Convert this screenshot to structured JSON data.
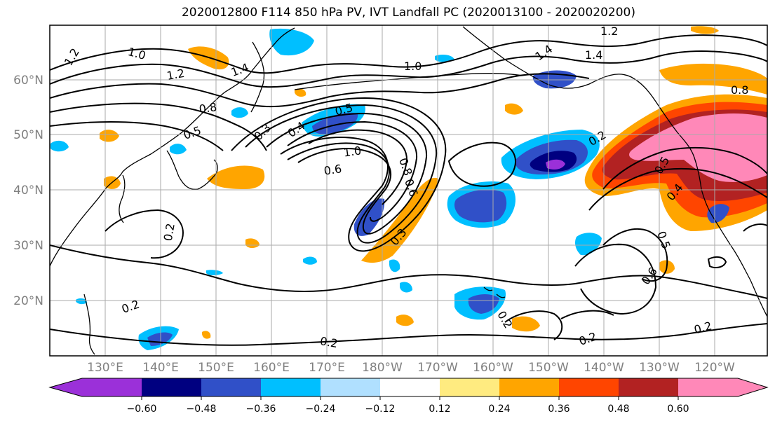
{
  "title": "2020012800 F114 850 hPa PV, IVT Landfall PC (2020013100 - 2020020200)",
  "map": {
    "lat_labels": [
      "60°N",
      "50°N",
      "40°N",
      "30°N",
      "20°N"
    ],
    "lon_labels": [
      "130°E",
      "140°E",
      "150°E",
      "160°E",
      "170°E",
      "180°W",
      "170°W",
      "160°W",
      "150°W",
      "140°W",
      "130°W",
      "120°W"
    ],
    "contour_labels": [
      "1.2",
      "1.0",
      "1.2",
      "1.4",
      "0.8",
      "0.5",
      "0.3",
      "0.4",
      "0.5",
      "1.0",
      "0.6",
      "0.8",
      "0.6",
      "0.3",
      "1.0",
      "1.4",
      "1.4",
      "1.2",
      "0.8",
      "0.2",
      "0.5",
      "0.4",
      "0.5",
      "0.6",
      "0.2",
      "0.2",
      "0.2",
      "0.2",
      "0.2",
      "0.2"
    ],
    "land_color": "#ffffff",
    "grid": true
  },
  "colorbar": {
    "tick_labels": [
      "−0.60",
      "−0.48",
      "−0.36",
      "−0.24",
      "−0.12",
      "0.12",
      "0.24",
      "0.36",
      "0.48",
      "0.60"
    ],
    "colors": [
      "#9b30d9",
      "#000080",
      "#3050c8",
      "#00bfff",
      "#b0e0ff",
      "#ffffff",
      "#ffeb80",
      "#ffa500",
      "#ff4500",
      "#b22222",
      "#ff88b8"
    ]
  }
}
